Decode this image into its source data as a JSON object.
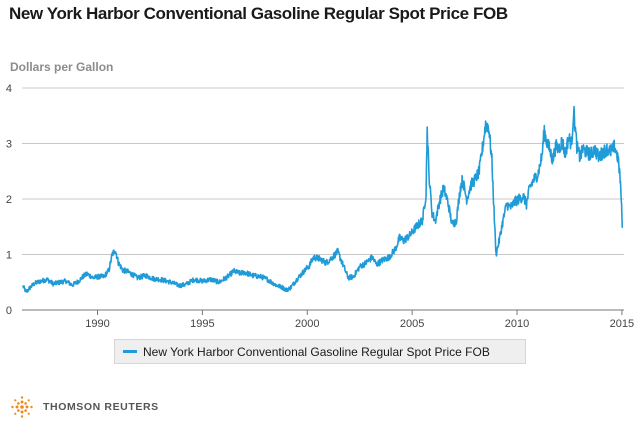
{
  "chart_data": {
    "type": "line",
    "title": "New York Harbor Conventional Gasoline Regular Spot Price FOB",
    "ylabel": "Dollars per Gallon",
    "xlabel": "",
    "xlim": [
      1986.4,
      2015.1
    ],
    "ylim": [
      0,
      4
    ],
    "x_ticks": [
      1990,
      1995,
      2000,
      2005,
      2010,
      2015
    ],
    "y_ticks": [
      0,
      1,
      2,
      3,
      4
    ],
    "grid": "horizontal",
    "legend_position": "bottom",
    "line_color": "#1f9bd7",
    "series": [
      {
        "name": "New York Harbor Conventional Gasoline Regular Spot Price FOB",
        "x": [
          1986.45,
          1986.6,
          1986.8,
          1987.0,
          1987.3,
          1987.6,
          1987.9,
          1988.2,
          1988.5,
          1988.8,
          1989.1,
          1989.3,
          1989.5,
          1989.8,
          1990.0,
          1990.3,
          1990.55,
          1990.7,
          1990.85,
          1991.0,
          1991.2,
          1991.5,
          1991.9,
          1992.3,
          1992.7,
          1993.0,
          1993.5,
          1993.9,
          1994.2,
          1994.6,
          1995.0,
          1995.4,
          1995.8,
          1996.2,
          1996.5,
          1996.8,
          1997.0,
          1997.4,
          1997.8,
          1998.1,
          1998.5,
          1998.8,
          1999.0,
          1999.2,
          1999.5,
          1999.8,
          2000.1,
          2000.3,
          2000.6,
          2000.9,
          2001.2,
          2001.45,
          2001.7,
          2001.95,
          2002.2,
          2002.5,
          2002.8,
          2003.1,
          2003.3,
          2003.6,
          2003.9,
          2004.2,
          2004.4,
          2004.6,
          2004.9,
          2005.2,
          2005.5,
          2005.66,
          2005.72,
          2005.8,
          2005.95,
          2006.1,
          2006.3,
          2006.5,
          2006.7,
          2006.9,
          2007.1,
          2007.3,
          2007.4,
          2007.6,
          2007.8,
          2008.0,
          2008.2,
          2008.4,
          2008.5,
          2008.65,
          2008.8,
          2008.9,
          2009.0,
          2009.15,
          2009.3,
          2009.5,
          2009.7,
          2009.9,
          2010.1,
          2010.3,
          2010.45,
          2010.6,
          2010.8,
          2011.0,
          2011.2,
          2011.3,
          2011.4,
          2011.55,
          2011.7,
          2011.85,
          2012.0,
          2012.15,
          2012.3,
          2012.45,
          2012.6,
          2012.7,
          2012.85,
          2013.0,
          2013.15,
          2013.3,
          2013.5,
          2013.7,
          2013.9,
          2014.1,
          2014.3,
          2014.5,
          2014.65,
          2014.8,
          2014.9,
          2014.97,
          2015.02
        ],
        "values": [
          0.43,
          0.32,
          0.41,
          0.48,
          0.52,
          0.55,
          0.47,
          0.5,
          0.52,
          0.45,
          0.52,
          0.6,
          0.65,
          0.58,
          0.6,
          0.6,
          0.72,
          1.0,
          1.08,
          0.85,
          0.72,
          0.68,
          0.58,
          0.62,
          0.56,
          0.55,
          0.5,
          0.44,
          0.46,
          0.55,
          0.52,
          0.55,
          0.5,
          0.6,
          0.7,
          0.66,
          0.68,
          0.62,
          0.6,
          0.55,
          0.45,
          0.41,
          0.36,
          0.4,
          0.55,
          0.68,
          0.8,
          0.95,
          0.92,
          0.85,
          0.95,
          1.05,
          0.82,
          0.58,
          0.6,
          0.78,
          0.85,
          0.95,
          0.82,
          0.9,
          0.95,
          1.1,
          1.3,
          1.25,
          1.35,
          1.5,
          1.62,
          2.1,
          3.25,
          2.45,
          1.75,
          1.6,
          1.95,
          2.2,
          1.95,
          1.55,
          1.6,
          2.2,
          2.35,
          2.0,
          2.25,
          2.35,
          2.5,
          3.05,
          3.35,
          3.3,
          2.7,
          1.8,
          1.0,
          1.25,
          1.55,
          1.9,
          1.85,
          1.95,
          2.0,
          2.05,
          1.9,
          2.2,
          2.35,
          2.45,
          2.8,
          3.25,
          3.05,
          2.9,
          2.7,
          2.95,
          2.9,
          3.05,
          2.8,
          3.1,
          3.0,
          3.6,
          2.95,
          2.75,
          2.9,
          2.85,
          2.8,
          2.9,
          2.75,
          2.85,
          2.9,
          2.85,
          2.95,
          2.75,
          2.45,
          2.0,
          1.48
        ]
      }
    ]
  },
  "brand": {
    "name": "THOMSON REUTERS"
  }
}
